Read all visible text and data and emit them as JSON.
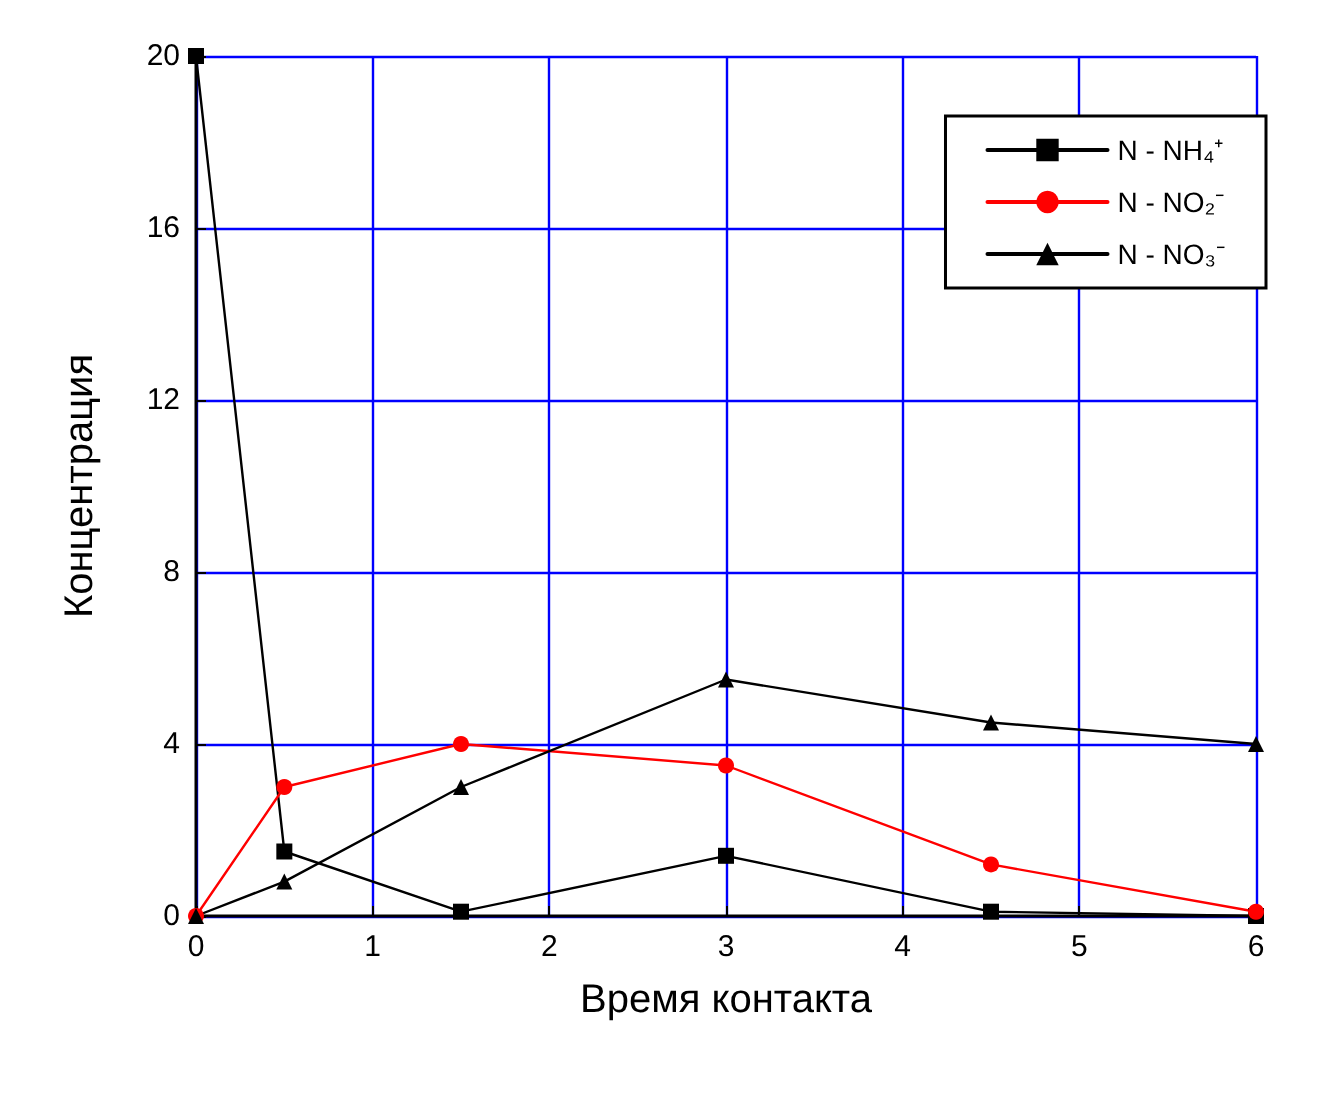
{
  "chart_data": {
    "type": "line",
    "xlabel": "Время контакта",
    "ylabel": "Концентрация",
    "x": [
      0,
      0.5,
      1.5,
      3,
      4.5,
      6
    ],
    "series": [
      {
        "name": "N - NH₄⁺",
        "color": "#000000",
        "marker": "square",
        "values": [
          20,
          1.5,
          0.1,
          1.4,
          0.1,
          0
        ]
      },
      {
        "name": "N - NO₂⁻",
        "color": "#ff0000",
        "marker": "circle",
        "values": [
          0,
          3,
          4,
          3.5,
          1.2,
          0.1
        ]
      },
      {
        "name": "N - NO₃⁻",
        "color": "#000000",
        "marker": "triangle",
        "values": [
          0,
          0.8,
          3,
          5.5,
          4.5,
          4
        ]
      }
    ],
    "xlim": [
      0,
      6
    ],
    "xticks": [
      0,
      1,
      2,
      3,
      4,
      5,
      6
    ],
    "ylim": [
      0,
      20
    ],
    "yticks": [
      0,
      4,
      8,
      12,
      16,
      20
    ],
    "grid": true,
    "legend": "top right",
    "line_style": "solid"
  }
}
